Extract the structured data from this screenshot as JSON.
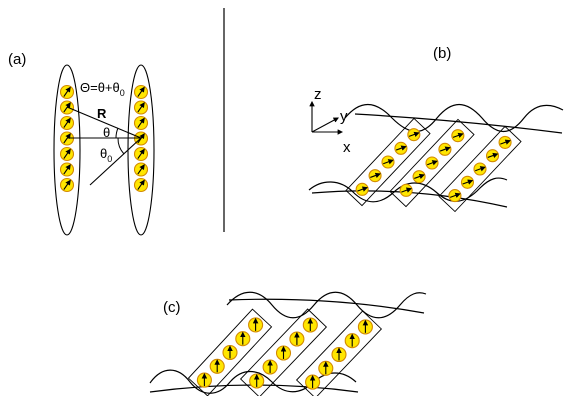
{
  "panels": {
    "a": {
      "label": "(a)"
    },
    "b": {
      "label": "(b)"
    },
    "c": {
      "label": "(c)"
    }
  },
  "annotations": {
    "angle_formula": "Θ=θ+θ",
    "angle_formula_sub": "0",
    "distance": "R",
    "theta": "θ",
    "theta0": "θ",
    "theta0_sub": "0"
  },
  "axes": {
    "z": "z",
    "y": "y",
    "x": "x"
  },
  "colors": {
    "spin_fill": "#ffe600",
    "spin_stroke": "#d28a00",
    "arrow": "#000000",
    "line": "#000000"
  }
}
